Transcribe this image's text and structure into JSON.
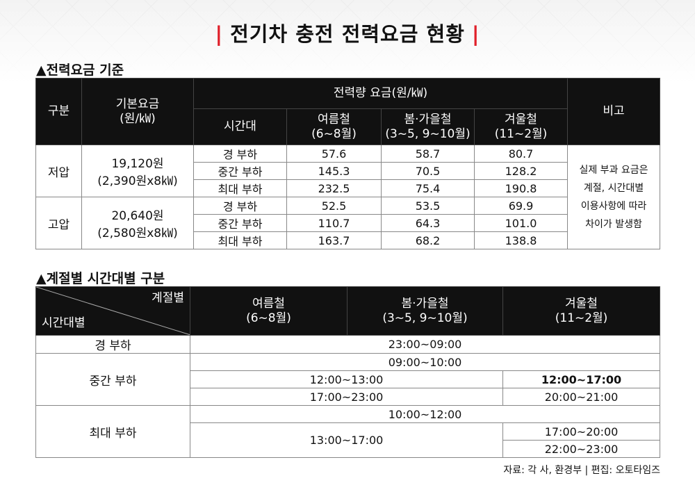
{
  "title": "전기차 충전 전력요금 현황",
  "title_bar": "|",
  "section1_label": "▲전력요금 기준",
  "section2_label": "▲계절별 시간대별 구분",
  "table1": {
    "headers": {
      "category": "구분",
      "base_rate": "기본요금",
      "base_rate_unit": "(원/㎾)",
      "energy_rate": "전력량 요금(원/㎾)",
      "remarks": "비고",
      "time_period": "시간대",
      "summer": "여름철",
      "summer_range": "(6~8월)",
      "spring_fall": "봄·가을철",
      "spring_fall_range": "(3~5, 9~10월)",
      "winter": "겨울철",
      "winter_range": "(11~2월)"
    },
    "groups": [
      {
        "name": "저압",
        "base_rate": "19,120원",
        "base_rate_detail": "(2,390원x8㎾)",
        "rows": [
          {
            "period": "경 부하",
            "summer": "57.6",
            "spring_fall": "58.7",
            "winter": "80.7"
          },
          {
            "period": "중간 부하",
            "summer": "145.3",
            "spring_fall": "70.5",
            "winter": "128.2"
          },
          {
            "period": "최대 부하",
            "summer": "232.5",
            "spring_fall": "75.4",
            "winter": "190.8"
          }
        ]
      },
      {
        "name": "고압",
        "base_rate": "20,640원",
        "base_rate_detail": "(2,580원x8㎾)",
        "rows": [
          {
            "period": "경 부하",
            "summer": "52.5",
            "spring_fall": "53.5",
            "winter": "69.9"
          },
          {
            "period": "중간 부하",
            "summer": "110.7",
            "spring_fall": "64.3",
            "winter": "101.0"
          },
          {
            "period": "최대 부하",
            "summer": "163.7",
            "spring_fall": "68.2",
            "winter": "138.8"
          }
        ]
      }
    ],
    "note_lines": [
      "실제 부과 요금은",
      "계절, 시간대별",
      "이용사항에 따라",
      "차이가 발생함"
    ]
  },
  "table2": {
    "corner_top": "계절별",
    "corner_bottom": "시간대별",
    "summer": "여름철",
    "summer_range": "(6~8월)",
    "spring_fall": "봄·가을철",
    "spring_fall_range": "(3~5, 9~10월)",
    "winter": "겨울철",
    "winter_range": "(11~2월)",
    "light_load": {
      "label": "경 부하",
      "all": "23:00~09:00"
    },
    "mid_load": {
      "label": "중간 부하",
      "all": "09:00~10:00",
      "summer_spring_1": "12:00~13:00",
      "winter_1": "12:00~17:00",
      "summer_spring_2": "17:00~23:00",
      "winter_2": "20:00~21:00"
    },
    "peak_load": {
      "label": "최대 부하",
      "all": "10:00~12:00",
      "summer_spring": "13:00~17:00",
      "winter_1": "17:00~20:00",
      "winter_2": "22:00~23:00"
    }
  },
  "source": "자료: 각 사, 환경부 | 편집: 오토타임즈"
}
